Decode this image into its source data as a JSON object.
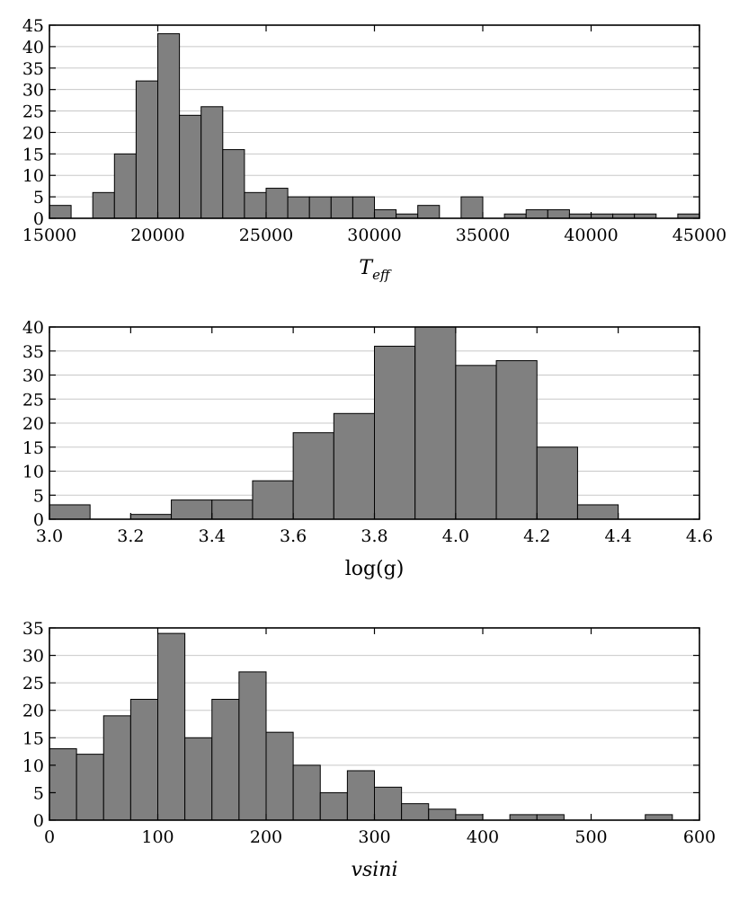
{
  "chart_data": [
    {
      "type": "bar",
      "subtype": "histogram",
      "xlabel_main": "T",
      "xlabel_sub": "eff",
      "ylabel": "",
      "xlim": [
        15000,
        45000
      ],
      "ylim": [
        0,
        45
      ],
      "xticks": [
        "15000",
        "20000",
        "25000",
        "30000",
        "35000",
        "40000",
        "45000"
      ],
      "yticks": [
        "0",
        "5",
        "10",
        "15",
        "20",
        "25",
        "30",
        "35",
        "40",
        "45"
      ],
      "bin_width": 1000,
      "bin_starts": [
        15000,
        16000,
        17000,
        18000,
        19000,
        20000,
        21000,
        22000,
        23000,
        24000,
        25000,
        26000,
        27000,
        28000,
        29000,
        30000,
        31000,
        32000,
        33000,
        34000,
        35000,
        36000,
        37000,
        38000,
        39000,
        40000,
        41000,
        42000,
        43000,
        44000
      ],
      "values": [
        3,
        0,
        6,
        15,
        32,
        43,
        24,
        26,
        16,
        6,
        7,
        5,
        5,
        5,
        5,
        2,
        1,
        3,
        0,
        5,
        0,
        1,
        2,
        2,
        1,
        1,
        1,
        1,
        0,
        1
      ],
      "grid": "horizontal",
      "bar_color": "#808080",
      "edge_color": "#000000",
      "grid_color": "#c8c8c8"
    },
    {
      "type": "bar",
      "subtype": "histogram",
      "xlabel": "log(g)",
      "ylabel": "",
      "xlim": [
        3.0,
        4.6
      ],
      "ylim": [
        0,
        40
      ],
      "xticks": [
        "3.0",
        "3.2",
        "3.4",
        "3.6",
        "3.8",
        "4.0",
        "4.2",
        "4.4",
        "4.6"
      ],
      "yticks": [
        "0",
        "5",
        "10",
        "15",
        "20",
        "25",
        "30",
        "35",
        "40"
      ],
      "bin_width": 0.1,
      "bin_starts": [
        3.0,
        3.1,
        3.2,
        3.3,
        3.4,
        3.5,
        3.6,
        3.7,
        3.8,
        3.9,
        4.0,
        4.1,
        4.2,
        4.3
      ],
      "values": [
        3,
        0,
        1,
        4,
        4,
        8,
        18,
        22,
        36,
        40,
        32,
        33,
        15,
        3
      ],
      "grid": "horizontal",
      "bar_color": "#808080",
      "edge_color": "#000000",
      "grid_color": "#c8c8c8"
    },
    {
      "type": "bar",
      "subtype": "histogram",
      "xlabel": "vsini",
      "ylabel": "",
      "xlim": [
        0,
        600
      ],
      "ylim": [
        0,
        35
      ],
      "xticks": [
        "0",
        "100",
        "200",
        "300",
        "400",
        "500",
        "600"
      ],
      "yticks": [
        "0",
        "5",
        "10",
        "15",
        "20",
        "25",
        "30",
        "35"
      ],
      "bin_width": 25,
      "bin_starts": [
        0,
        25,
        50,
        75,
        100,
        125,
        150,
        175,
        200,
        225,
        250,
        275,
        300,
        325,
        350,
        375,
        400,
        425,
        450,
        475,
        500,
        525,
        550
      ],
      "values": [
        13,
        12,
        19,
        22,
        34,
        15,
        22,
        27,
        16,
        10,
        5,
        9,
        6,
        3,
        2,
        1,
        0,
        1,
        1,
        0,
        0,
        0,
        1
      ],
      "grid": "horizontal",
      "bar_color": "#808080",
      "edge_color": "#000000",
      "grid_color": "#c8c8c8"
    }
  ]
}
